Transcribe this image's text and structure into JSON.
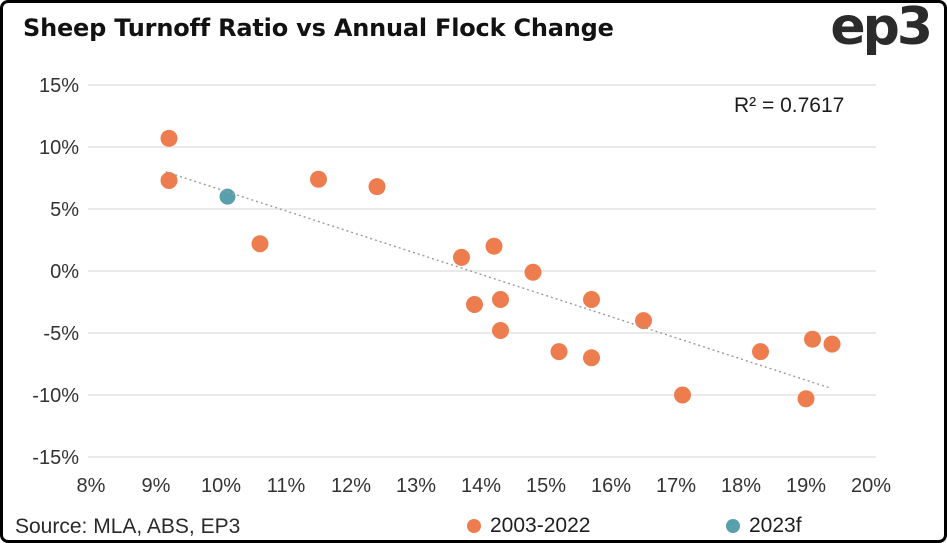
{
  "header": {
    "title": "Sheep Turnoff Ratio vs Annual Flock Change",
    "logo": "ep3"
  },
  "annotation": {
    "r_squared": "R² = 0.7617"
  },
  "footer": {
    "source": "Source: MLA, ABS, EP3"
  },
  "legend": [
    {
      "label": "2003-2022",
      "color": "#ED7D4E"
    },
    {
      "label": "2023f",
      "color": "#58A0AB"
    }
  ],
  "colors": {
    "orange": "#ED7D4E",
    "teal": "#58A0AB",
    "gridline": "#E4E4E4",
    "trendline": "#9B9B9B",
    "text": "#1E1E1E"
  },
  "chart_data": {
    "type": "scatter",
    "title": "Sheep Turnoff Ratio vs Annual Flock Change",
    "xlabel": "",
    "ylabel": "",
    "xlim": [
      8,
      20
    ],
    "ylim": [
      -15,
      15
    ],
    "grid": "horizontal",
    "legend_position": "bottom",
    "r_squared": 0.7617,
    "x_ticks": [
      {
        "v": 8,
        "label": "8%"
      },
      {
        "v": 9,
        "label": "9%"
      },
      {
        "v": 10,
        "label": "10%"
      },
      {
        "v": 11,
        "label": "11%"
      },
      {
        "v": 12,
        "label": "12%"
      },
      {
        "v": 13,
        "label": "13%"
      },
      {
        "v": 14,
        "label": "14%"
      },
      {
        "v": 15,
        "label": "15%"
      },
      {
        "v": 16,
        "label": "16%"
      },
      {
        "v": 17,
        "label": "17%"
      },
      {
        "v": 18,
        "label": "18%"
      },
      {
        "v": 19,
        "label": "19%"
      },
      {
        "v": 20,
        "label": "20%"
      }
    ],
    "y_ticks": [
      {
        "v": 15,
        "label": "15%"
      },
      {
        "v": 10,
        "label": "10%"
      },
      {
        "v": 5,
        "label": "5%"
      },
      {
        "v": 0,
        "label": "0%"
      },
      {
        "v": -5,
        "label": "-5%"
      },
      {
        "v": -10,
        "label": "-10%"
      },
      {
        "v": -15,
        "label": "-15%"
      }
    ],
    "series": [
      {
        "name": "2003-2022",
        "color": "#ED7D4E",
        "points": [
          [
            9.2,
            10.7
          ],
          [
            9.2,
            7.3
          ],
          [
            10.6,
            2.2
          ],
          [
            11.5,
            7.4
          ],
          [
            12.4,
            6.8
          ],
          [
            13.7,
            1.1
          ],
          [
            13.9,
            -2.7
          ],
          [
            14.2,
            2.0
          ],
          [
            14.3,
            -2.3
          ],
          [
            14.3,
            -4.8
          ],
          [
            14.8,
            -0.1
          ],
          [
            15.2,
            -6.5
          ],
          [
            15.7,
            -2.3
          ],
          [
            15.7,
            -7.0
          ],
          [
            16.5,
            -4.0
          ],
          [
            17.1,
            -10.0
          ],
          [
            18.3,
            -6.5
          ],
          [
            19.0,
            -10.3
          ],
          [
            19.1,
            -5.5
          ],
          [
            19.4,
            -5.9
          ]
        ]
      },
      {
        "name": "2023f",
        "color": "#58A0AB",
        "points": [
          [
            10.1,
            6.0
          ]
        ]
      }
    ],
    "trendline": {
      "style": "dotted",
      "x1": 9.15,
      "y1": 8.0,
      "x2": 19.35,
      "y2": -9.4
    }
  }
}
